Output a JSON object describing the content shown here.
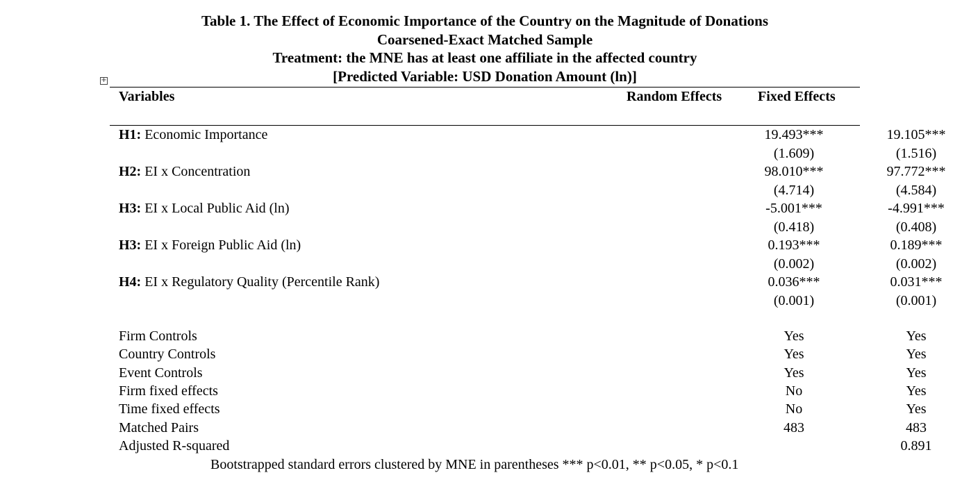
{
  "title_lines": [
    "Table 1. The Effect of Economic Importance of the Country on the Magnitude of Donations",
    "Coarsened-Exact Matched Sample",
    "Treatment: the MNE has at least one affiliate in the affected country",
    "[Predicted Variable: USD Donation Amount (ln)]"
  ],
  "anchor_icon": "table-move-icon",
  "anchor_glyph": "+",
  "headers": {
    "variables": "Variables",
    "random_effects": "Random Effects",
    "fixed_effects": "Fixed Effects"
  },
  "coefficients": [
    {
      "tag": "H1:",
      "label": " Economic Importance",
      "re": "19.493***",
      "re_se": "(1.609)",
      "fe": "19.105***",
      "fe_se": "(1.516)"
    },
    {
      "tag": "H2:",
      "label": " EI x Concentration",
      "re": "98.010***",
      "re_se": "(4.714)",
      "fe": "97.772***",
      "fe_se": "(4.584)"
    },
    {
      "tag": "H3:",
      "label": " EI x Local Public Aid (ln)",
      "re": "-5.001***",
      "re_se": "(0.418)",
      "fe": "-4.991***",
      "fe_se": "(0.408)"
    },
    {
      "tag": "H3:",
      "label": " EI x Foreign Public Aid (ln)",
      "re": "0.193***",
      "re_se": "(0.002)",
      "fe": "0.189***",
      "fe_se": "(0.002)"
    },
    {
      "tag": "H4:",
      "label": " EI x Regulatory Quality (Percentile Rank)",
      "re": "0.036***",
      "re_se": "(0.001)",
      "fe": "0.031***",
      "fe_se": "(0.001)"
    }
  ],
  "controls": [
    {
      "label": "Firm Controls",
      "re": "Yes",
      "fe": "Yes"
    },
    {
      "label": "Country Controls",
      "re": "Yes",
      "fe": "Yes"
    },
    {
      "label": "Event Controls",
      "re": "Yes",
      "fe": "Yes"
    },
    {
      "label": "Firm fixed effects",
      "re": "No",
      "fe": "Yes"
    },
    {
      "label": "Time fixed effects",
      "re": "No",
      "fe": "Yes"
    },
    {
      "label": "Matched Pairs",
      "re": "483",
      "fe": "483"
    },
    {
      "label": "Adjusted R-squared",
      "re": "",
      "fe": "0.891"
    }
  ],
  "footnote": "Bootstrapped standard errors clustered by MNE in parentheses *** p<0.01, ** p<0.05, * p<0.1"
}
